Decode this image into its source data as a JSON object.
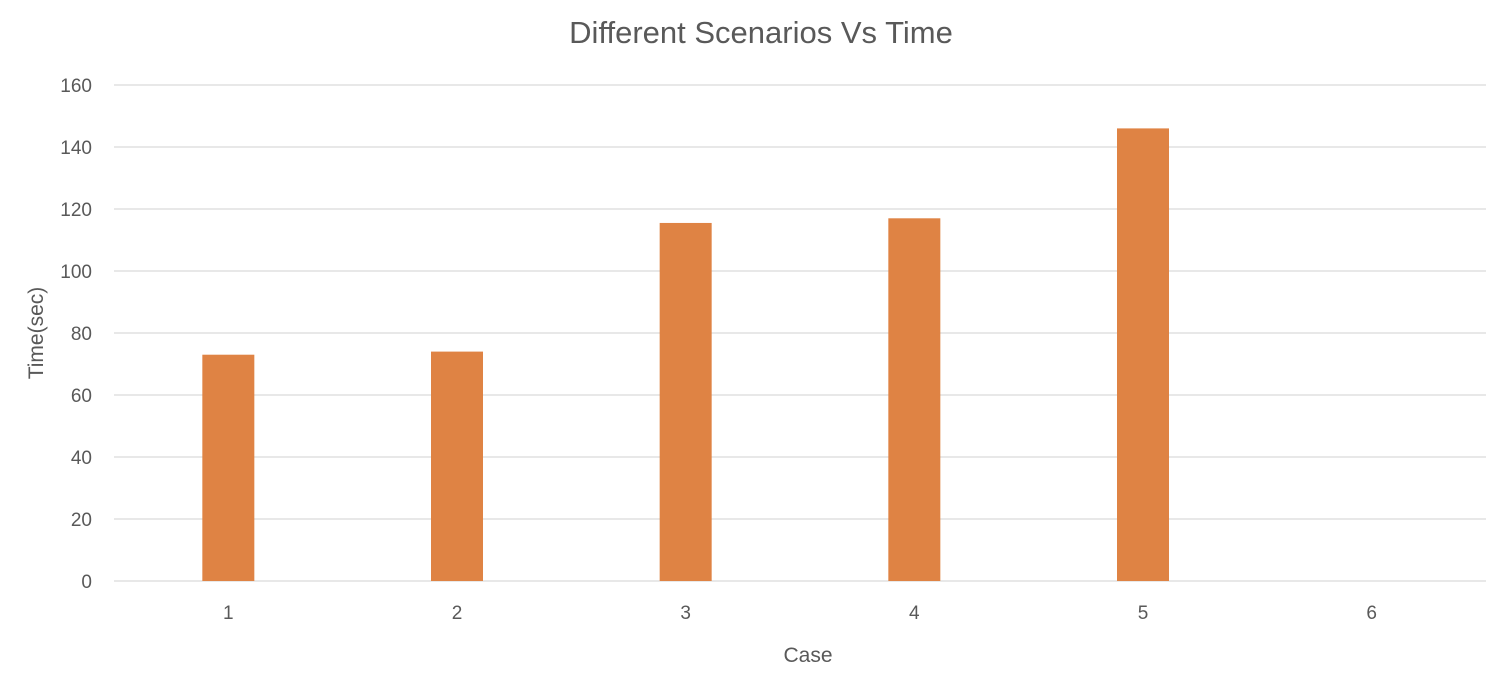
{
  "chart_data": {
    "type": "bar",
    "title": "Different Scenarios Vs Time",
    "xlabel": "Case",
    "ylabel": "Time(sec)",
    "categories": [
      "1",
      "2",
      "3",
      "4",
      "5",
      "6"
    ],
    "series": [
      {
        "values": [
          73,
          74,
          115.5,
          117,
          146,
          null
        ]
      }
    ],
    "ylim": [
      0,
      160
    ],
    "yticks": [
      0,
      20,
      40,
      60,
      80,
      100,
      120,
      140,
      160
    ],
    "grid": true,
    "legend": "none",
    "bar_color": "#df8344"
  }
}
